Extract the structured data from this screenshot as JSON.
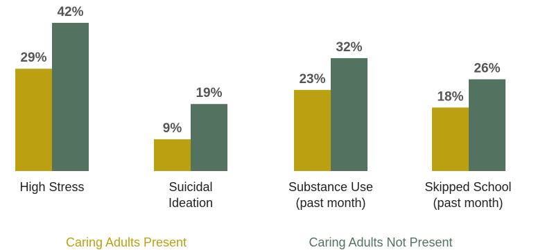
{
  "chart_data": {
    "type": "bar",
    "categories": [
      [
        "High Stress"
      ],
      [
        "Suicidal",
        "Ideation"
      ],
      [
        "Substance Use",
        "(past month)"
      ],
      [
        "Skipped School",
        "(past month)"
      ]
    ],
    "series": [
      {
        "name": "Caring Adults Present",
        "color": "#bba012",
        "values": [
          29,
          9,
          23,
          18
        ],
        "labels": [
          "29%",
          "9%",
          "23%",
          "18%"
        ]
      },
      {
        "name": "Caring Adults Not Present",
        "color": "#537360",
        "values": [
          42,
          19,
          32,
          26
        ],
        "labels": [
          "42%",
          "19%",
          "32%",
          "26%"
        ]
      }
    ],
    "ylim": [
      0,
      42
    ],
    "grid": false,
    "legend_placement": "bottom",
    "title": "",
    "xlabel": "",
    "ylabel": ""
  }
}
